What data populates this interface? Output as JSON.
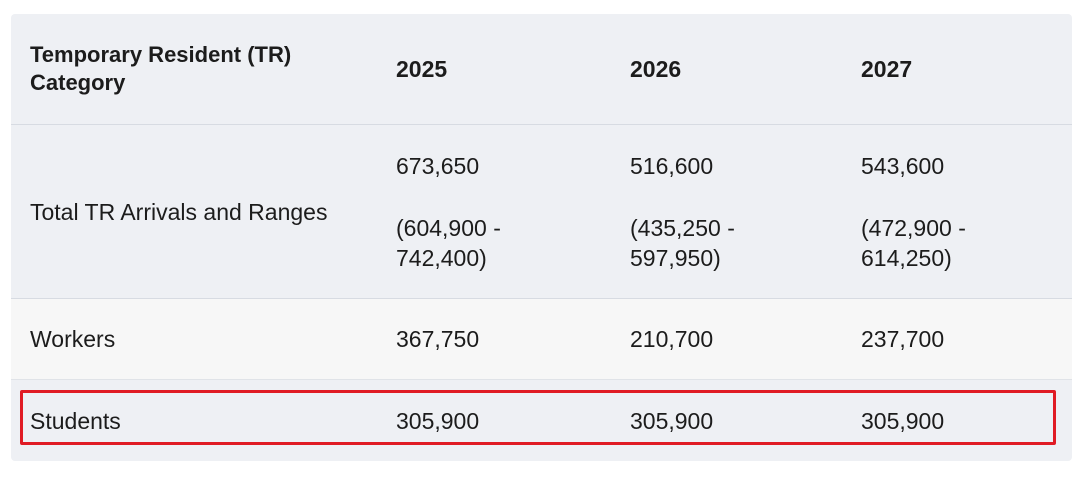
{
  "table": {
    "headers": [
      "Temporary Resident (TR) Category",
      "2025",
      "2026",
      "2027"
    ],
    "rows": [
      {
        "category": "Total TR Arrivals and Ranges",
        "values": [
          {
            "value": "673,650",
            "range_line1": "(604,900 -",
            "range_line2": "742,400)"
          },
          {
            "value": "516,600",
            "range_line1": "(435,250 -",
            "range_line2": "597,950)"
          },
          {
            "value": "543,600",
            "range_line1": "(472,900 -",
            "range_line2": "614,250)"
          }
        ]
      },
      {
        "category": "Workers",
        "values": [
          "367,750",
          "210,700",
          "237,700"
        ]
      },
      {
        "category": "Students",
        "values": [
          "305,900",
          "305,900",
          "305,900"
        ]
      }
    ]
  },
  "highlight_color": "#e01b24"
}
